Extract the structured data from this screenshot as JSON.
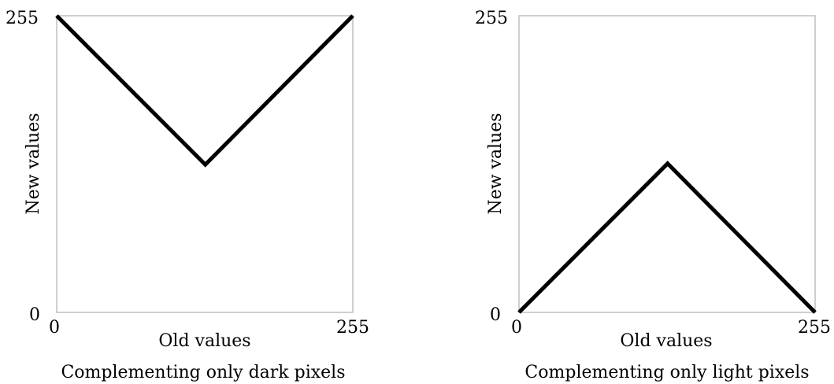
{
  "chart_data": [
    {
      "type": "line",
      "caption": "Complementing only dark pixels",
      "xlabel": "Old values",
      "ylabel": "New values",
      "xlim": [
        0,
        255
      ],
      "ylim": [
        0,
        255
      ],
      "x_ticks": [
        "0",
        "255"
      ],
      "y_ticks": [
        "0",
        "255"
      ],
      "grid": false,
      "frame_color": "#bfbfbf",
      "line_color": "#000000",
      "series": [
        {
          "x": [
            0,
            128,
            255
          ],
          "y": [
            255,
            127,
            255
          ]
        }
      ]
    },
    {
      "type": "line",
      "caption": "Complementing only light pixels",
      "xlabel": "Old values",
      "ylabel": "New values",
      "xlim": [
        0,
        255
      ],
      "ylim": [
        0,
        255
      ],
      "x_ticks": [
        "0",
        "255"
      ],
      "y_ticks": [
        "0",
        "255"
      ],
      "grid": false,
      "frame_color": "#bfbfbf",
      "line_color": "#000000",
      "series": [
        {
          "x": [
            0,
            128,
            255
          ],
          "y": [
            0,
            128,
            0
          ]
        }
      ]
    }
  ]
}
